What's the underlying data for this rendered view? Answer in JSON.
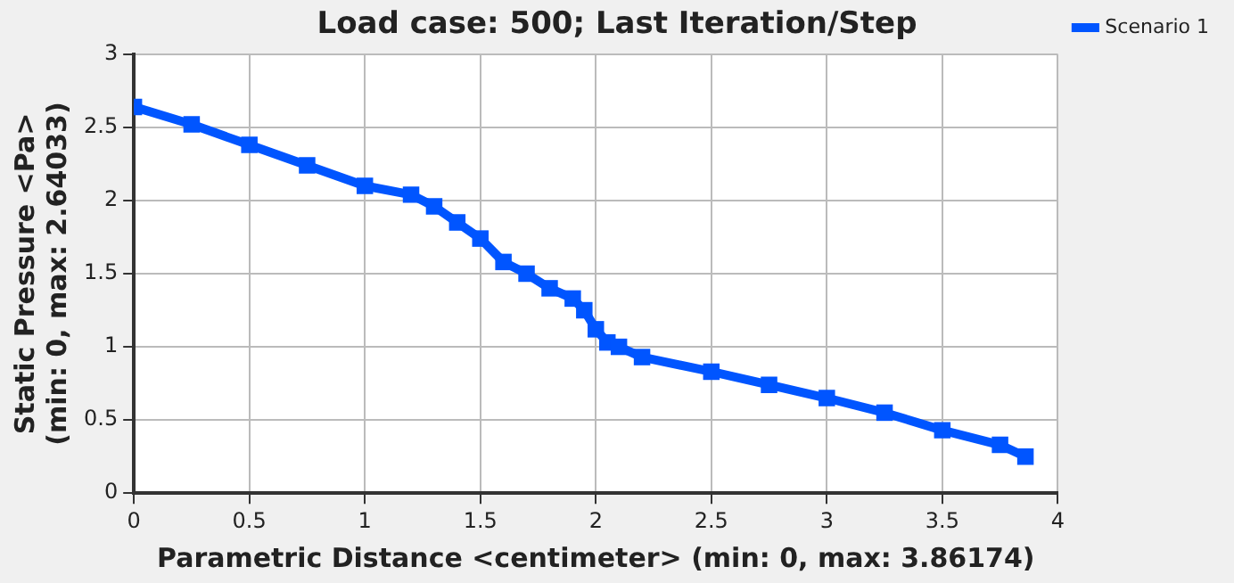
{
  "chart_data": {
    "type": "line",
    "title": "Load case: 500; Last Iteration/Step",
    "xlabel": "Parametric Distance <centimeter> (min: 0, max: 3.86174)",
    "ylabel": "Static Pressure <Pa> (min: 0, max: 2.64033)",
    "x": [
      0,
      0.25,
      0.5,
      0.75,
      1,
      1.2,
      1.3,
      1.4,
      1.5,
      1.6,
      1.7,
      1.8,
      1.9,
      1.95,
      2,
      2.05,
      2.1,
      2.2,
      2.5,
      2.75,
      3,
      3.25,
      3.5,
      3.75,
      3.86
    ],
    "series": [
      {
        "name": "Scenario 1",
        "color": "#0055ff",
        "values": [
          2.64,
          2.52,
          2.38,
          2.24,
          2.1,
          2.04,
          1.96,
          1.85,
          1.74,
          1.58,
          1.5,
          1.4,
          1.33,
          1.25,
          1.12,
          1.03,
          1.0,
          0.93,
          0.83,
          0.74,
          0.65,
          0.55,
          0.43,
          0.33,
          0.25
        ]
      }
    ],
    "xlim": [
      0,
      4
    ],
    "ylim": [
      0,
      3
    ],
    "xticks": [
      0,
      0.5,
      1,
      1.5,
      2,
      2.5,
      3,
      3.5,
      4
    ],
    "yticks": [
      0,
      0.5,
      1,
      1.5,
      2,
      2.5,
      3
    ],
    "grid": true,
    "legend": "top right",
    "marker": "square",
    "line_style": "solid"
  }
}
